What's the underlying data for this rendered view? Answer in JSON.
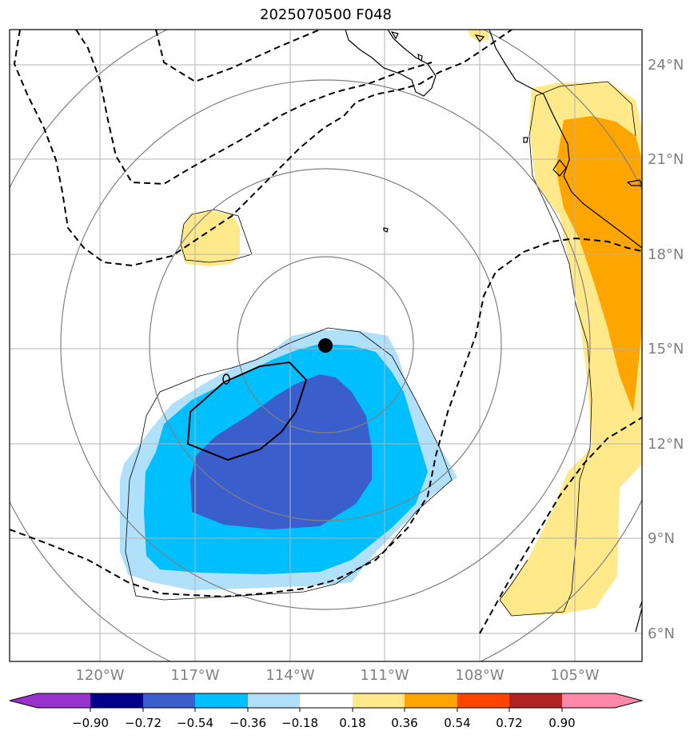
{
  "map": {
    "title": "2025070500 F048",
    "lon_labels": [
      "120°W",
      "117°W",
      "114°W",
      "111°W",
      "108°W",
      "105°W"
    ],
    "lat_labels": [
      "24°N",
      "21°N",
      "18°N",
      "15°N",
      "12°N",
      "9°N",
      "6°N"
    ],
    "storm_center": {
      "lon": "112.8°W",
      "lat": "15.1°N"
    },
    "colors": {
      "deep_blue": "#3a5fcd",
      "sky_blue": "#00bfff",
      "light_blue": "#b0e0fa",
      "light_yellow": "#ffe98a",
      "orange": "#ffa500",
      "grid": "#b3b3b3",
      "range_rings": "#808080"
    }
  },
  "colorbar": {
    "labels": [
      "−0.90",
      "−0.72",
      "−0.54",
      "−0.36",
      "−0.18",
      "0.18",
      "0.36",
      "0.54",
      "0.72",
      "0.90"
    ],
    "colors": [
      "#9932cc",
      "#00008b",
      "#3a5fcd",
      "#00bfff",
      "#b0e0fa",
      "#ffffff",
      "#ffe98a",
      "#ffa500",
      "#ff4500",
      "#b22222",
      "#ff88aa"
    ]
  }
}
